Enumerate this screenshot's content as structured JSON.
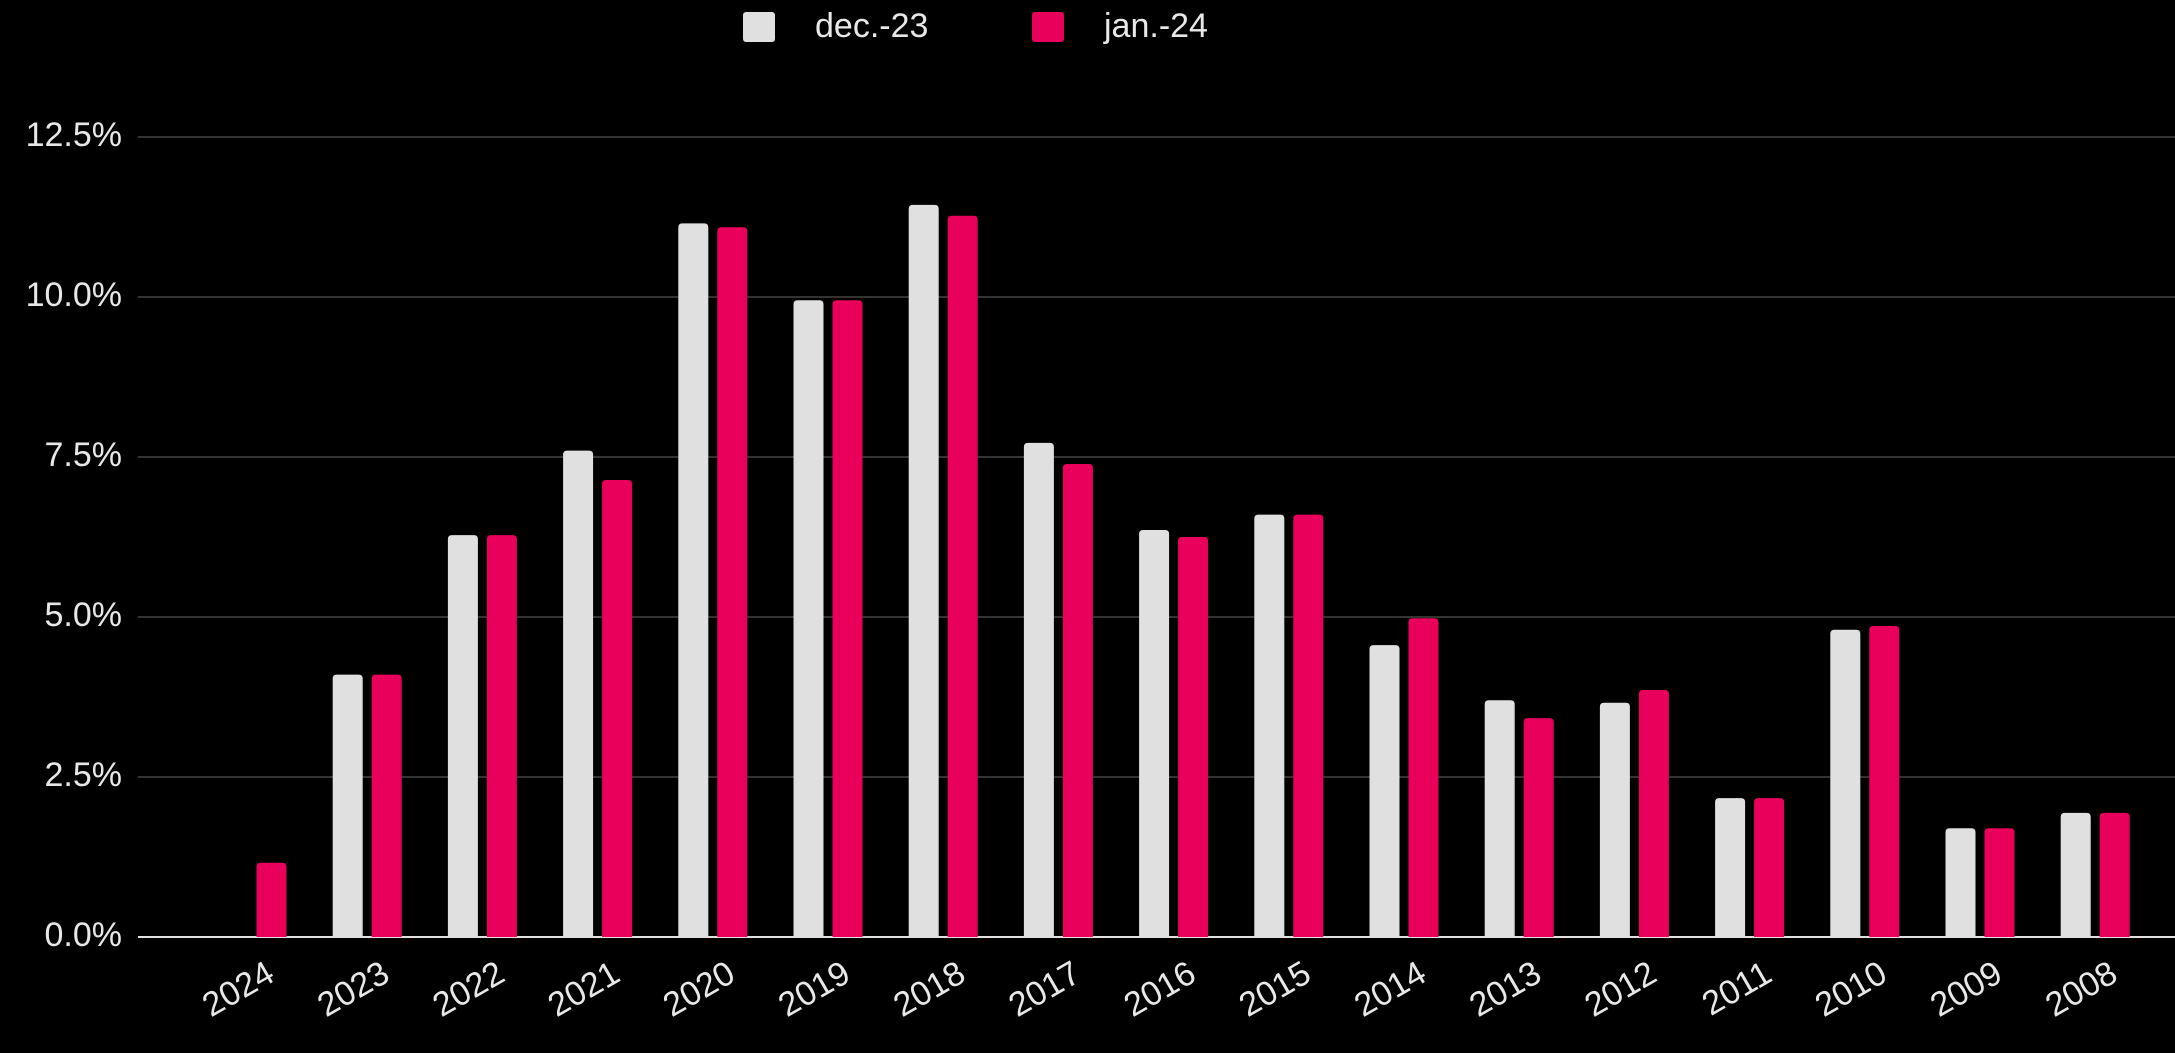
{
  "chart_data": {
    "type": "bar",
    "categories": [
      "2024",
      "2023",
      "2022",
      "2021",
      "2020",
      "2019",
      "2018",
      "2017",
      "2016",
      "2015",
      "2014",
      "2013",
      "2012",
      "2011",
      "2010",
      "2009",
      "2008"
    ],
    "series": [
      {
        "name": "dec.-23",
        "color": "#e0e0e0",
        "values": [
          null,
          4.1,
          6.28,
          7.6,
          11.15,
          9.95,
          11.44,
          7.72,
          6.36,
          6.6,
          4.56,
          3.7,
          3.66,
          2.17,
          4.8,
          1.7,
          1.94
        ]
      },
      {
        "name": "jan.-24",
        "color": "#e8005a",
        "values": [
          1.16,
          4.1,
          6.28,
          7.14,
          11.09,
          9.95,
          11.27,
          7.39,
          6.25,
          6.6,
          4.98,
          3.42,
          3.86,
          2.17,
          4.86,
          1.7,
          1.94
        ]
      }
    ],
    "ylim": [
      0,
      12.5
    ],
    "yticks": [
      {
        "value": 0,
        "label": "0.0%"
      },
      {
        "value": 2.5,
        "label": "2.5%"
      },
      {
        "value": 5,
        "label": "5.0%"
      },
      {
        "value": 7.5,
        "label": "7.5%"
      },
      {
        "value": 10,
        "label": "10.0%"
      },
      {
        "value": 12.5,
        "label": "12.5%"
      }
    ],
    "grid": true,
    "legend": "top"
  }
}
